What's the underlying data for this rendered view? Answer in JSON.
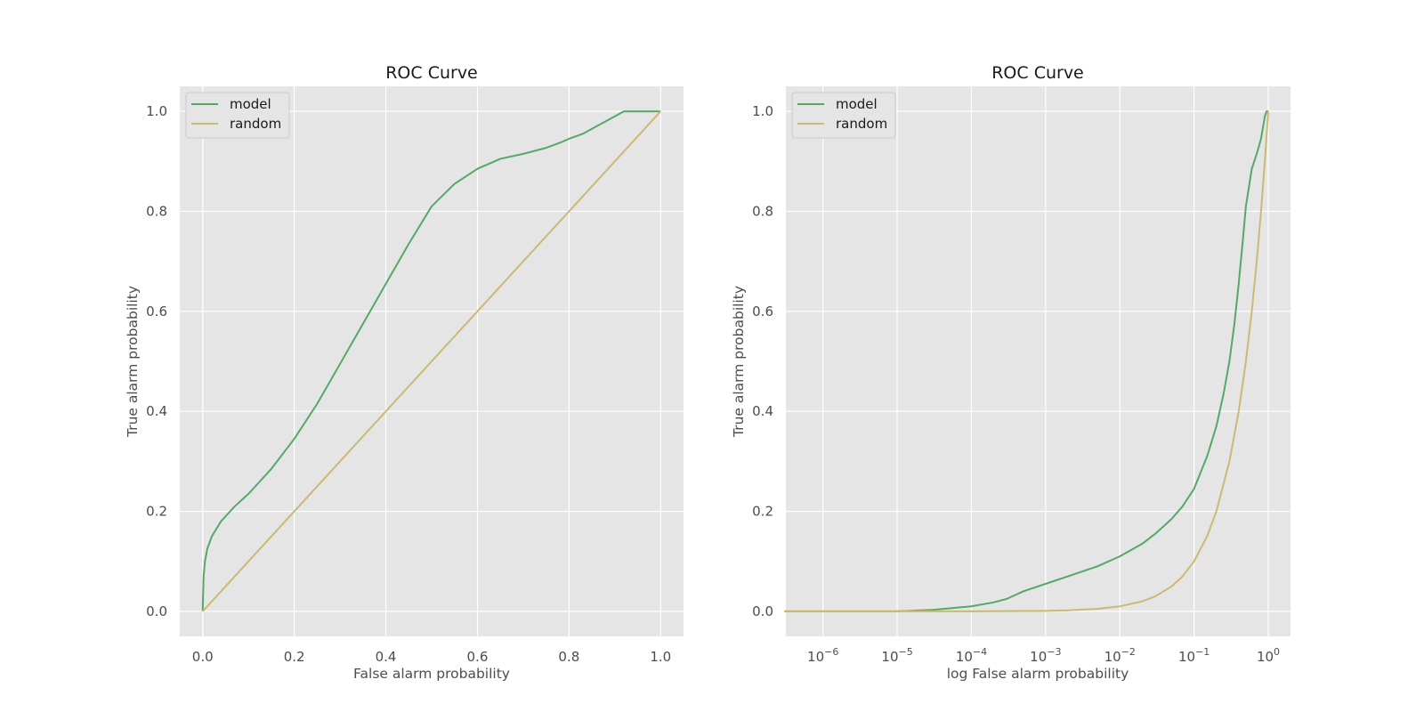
{
  "chart_data": [
    {
      "type": "line",
      "title": "ROC Curve",
      "xlabel": "False alarm probability",
      "ylabel": "True alarm probability",
      "xscale": "linear",
      "xlim": [
        -0.05,
        1.05
      ],
      "ylim": [
        -0.05,
        1.05
      ],
      "xticks": [
        0.0,
        0.2,
        0.4,
        0.6,
        0.8,
        1.0
      ],
      "xtick_labels": [
        "0.0",
        "0.2",
        "0.4",
        "0.6",
        "0.8",
        "1.0"
      ],
      "yticks": [
        0.0,
        0.2,
        0.4,
        0.6,
        0.8,
        1.0
      ],
      "ytick_labels": [
        "0.0",
        "0.2",
        "0.4",
        "0.6",
        "0.8",
        "1.0"
      ],
      "grid": true,
      "legend_position": "top-left",
      "series": [
        {
          "name": "model",
          "color": "#55a868",
          "x": [
            0,
            0.002,
            0.005,
            0.01,
            0.02,
            0.04,
            0.07,
            0.1,
            0.15,
            0.2,
            0.25,
            0.3,
            0.35,
            0.4,
            0.45,
            0.5,
            0.55,
            0.6,
            0.65,
            0.7,
            0.75,
            0.78,
            0.8,
            0.83,
            0.85,
            0.87,
            0.9,
            0.92,
            0.95,
            1.0
          ],
          "y": [
            0,
            0.07,
            0.1,
            0.125,
            0.15,
            0.18,
            0.21,
            0.235,
            0.285,
            0.345,
            0.415,
            0.495,
            0.575,
            0.655,
            0.735,
            0.81,
            0.855,
            0.885,
            0.905,
            0.915,
            0.927,
            0.937,
            0.945,
            0.955,
            0.965,
            0.975,
            0.99,
            1.0,
            1.0,
            1.0
          ]
        },
        {
          "name": "random",
          "color": "#ccb974",
          "x": [
            0,
            1
          ],
          "y": [
            0,
            1
          ]
        }
      ]
    },
    {
      "type": "line",
      "title": "ROC Curve",
      "xlabel": "log False alarm probability",
      "ylabel": "True alarm probability",
      "xscale": "log",
      "xlim_log10": [
        -6.5,
        0.3
      ],
      "ylim": [
        -0.05,
        1.05
      ],
      "xticks_log10": [
        -6,
        -5,
        -4,
        -3,
        -2,
        -1,
        0
      ],
      "xtick_labels": [
        {
          "base": "10",
          "exp": "−6"
        },
        {
          "base": "10",
          "exp": "−5"
        },
        {
          "base": "10",
          "exp": "−4"
        },
        {
          "base": "10",
          "exp": "−3"
        },
        {
          "base": "10",
          "exp": "−2"
        },
        {
          "base": "10",
          "exp": "−1"
        },
        {
          "base": "10",
          "exp": "0"
        }
      ],
      "yticks": [
        0.0,
        0.2,
        0.4,
        0.6,
        0.8,
        1.0
      ],
      "ytick_labels": [
        "0.0",
        "0.2",
        "0.4",
        "0.6",
        "0.8",
        "1.0"
      ],
      "grid": true,
      "legend_position": "top-left",
      "series": [
        {
          "name": "model",
          "color": "#55a868",
          "x": [
            3e-07,
            1e-06,
            1e-05,
            3e-05,
            0.0001,
            0.0002,
            0.0003,
            0.0005,
            0.001,
            0.002,
            0.005,
            0.01,
            0.02,
            0.03,
            0.05,
            0.07,
            0.1,
            0.15,
            0.2,
            0.25,
            0.3,
            0.35,
            0.4,
            0.45,
            0.5,
            0.6,
            0.7,
            0.8,
            0.9,
            0.95,
            1.0
          ],
          "y": [
            0,
            0,
            0,
            0.003,
            0.01,
            0.018,
            0.025,
            0.04,
            0.055,
            0.07,
            0.09,
            0.11,
            0.135,
            0.155,
            0.185,
            0.21,
            0.245,
            0.31,
            0.37,
            0.435,
            0.5,
            0.575,
            0.655,
            0.735,
            0.81,
            0.885,
            0.915,
            0.945,
            0.99,
            1.0,
            1.0
          ]
        },
        {
          "name": "random",
          "color": "#ccb974",
          "x": [
            3e-07,
            1e-06,
            1e-05,
            0.0001,
            0.001,
            0.002,
            0.005,
            0.01,
            0.02,
            0.03,
            0.05,
            0.07,
            0.1,
            0.15,
            0.2,
            0.3,
            0.4,
            0.5,
            0.6,
            0.7,
            0.8,
            0.9,
            1.0
          ],
          "y": [
            3e-07,
            1e-06,
            1e-05,
            0.0001,
            0.001,
            0.002,
            0.005,
            0.01,
            0.02,
            0.03,
            0.05,
            0.07,
            0.1,
            0.15,
            0.2,
            0.3,
            0.4,
            0.5,
            0.6,
            0.7,
            0.8,
            0.9,
            1.0
          ]
        }
      ]
    }
  ]
}
